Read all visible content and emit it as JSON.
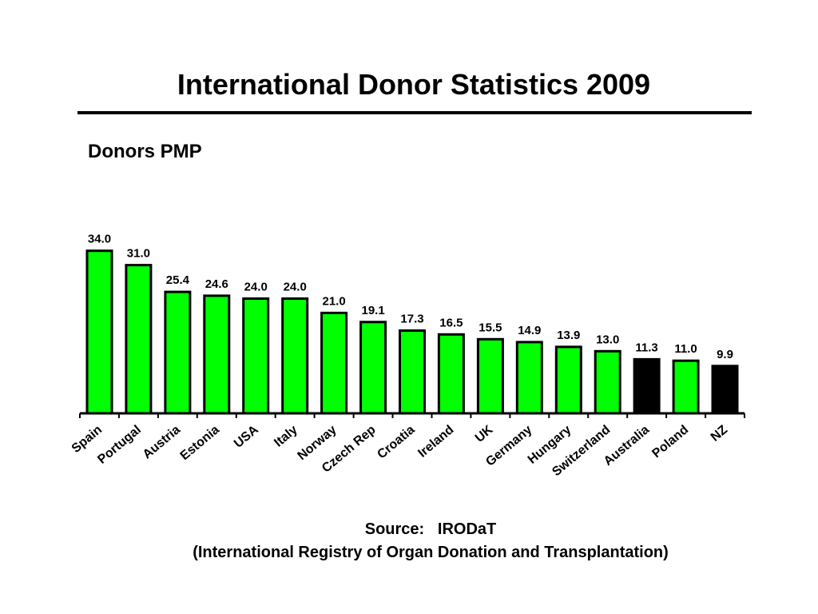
{
  "slide": {
    "title": "International Donor Statistics 2009",
    "subtitle": "Donors PMP"
  },
  "source": {
    "label": "Source:",
    "name": "IRODaT",
    "full_name": "(International Registry of Organ Donation and Transplantation)"
  },
  "colors": {
    "default_bar": "#00ff00",
    "highlight_bar": "#000000",
    "outline": "#000000"
  },
  "chart_data": {
    "type": "bar",
    "title": "",
    "xlabel": "",
    "ylabel": "",
    "ylim": [
      0,
      35
    ],
    "grid": false,
    "legend": "none",
    "categories": [
      "Spain",
      "Portugal",
      "Austria",
      "Estonia",
      "USA",
      "Italy",
      "Norway",
      "Czech Rep",
      "Croatia",
      "Ireland",
      "UK",
      "Germany",
      "Hungary",
      "Switzerland",
      "Australia",
      "Poland",
      "NZ"
    ],
    "values": [
      34.0,
      31.0,
      25.4,
      24.6,
      24.0,
      24.0,
      21.0,
      19.1,
      17.3,
      16.5,
      15.5,
      14.9,
      13.9,
      13.0,
      11.3,
      11.0,
      9.9
    ],
    "data_labels": [
      "34.0",
      "31.0",
      "25.4",
      "24.6",
      "24.0",
      "24.0",
      "21.0",
      "19.1",
      "17.3",
      "16.5",
      "15.5",
      "14.9",
      "13.9",
      "13.0",
      "11.3",
      "11.0",
      "9.9"
    ],
    "highlighted_categories": [
      "Australia",
      "NZ"
    ]
  }
}
